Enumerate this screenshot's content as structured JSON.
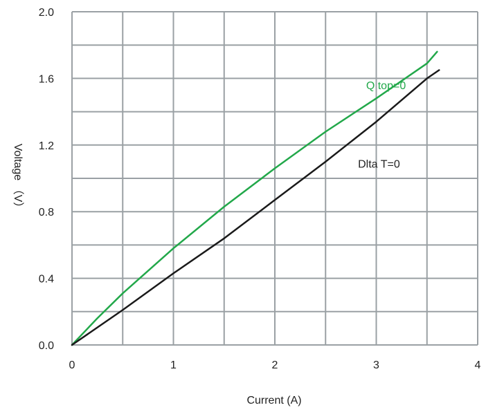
{
  "chart_data": {
    "type": "line",
    "title": "",
    "xlabel": "Current (A)",
    "ylabel": "Voltage （V）",
    "xlim": [
      0,
      4
    ],
    "ylim": [
      0,
      2.0
    ],
    "xticks": [
      0,
      1,
      2,
      3,
      4
    ],
    "xtick_labels": [
      "0",
      "1",
      "2",
      "3",
      "4"
    ],
    "yticks": [
      0,
      0.4,
      0.8,
      1.2,
      1.6,
      2.0
    ],
    "ytick_labels": [
      "0.0",
      "0.4",
      "0.8",
      "1.2",
      "1.6",
      "2.0"
    ],
    "grid": true,
    "grid_color": "#9aa0a4",
    "series": [
      {
        "name": "Q top=0",
        "color": "#22a84a",
        "x": [
          0,
          0.25,
          0.5,
          1.0,
          1.5,
          2.0,
          2.5,
          3.0,
          3.5,
          3.6
        ],
        "y": [
          0.0,
          0.16,
          0.31,
          0.58,
          0.83,
          1.06,
          1.28,
          1.48,
          1.69,
          1.76
        ]
      },
      {
        "name": "Dlta T=0",
        "color": "#1a1a1a",
        "x": [
          0,
          0.5,
          1.0,
          1.5,
          2.0,
          2.5,
          3.0,
          3.5,
          3.62
        ],
        "y": [
          0.0,
          0.21,
          0.43,
          0.64,
          0.87,
          1.1,
          1.34,
          1.6,
          1.65
        ]
      }
    ],
    "annotations": [
      {
        "text": "Q top=0",
        "x": 2.9,
        "y": 1.56,
        "color": "#22a84a"
      },
      {
        "text": "Dlta T=0",
        "x": 2.82,
        "y": 1.09,
        "color": "#222222"
      }
    ]
  }
}
